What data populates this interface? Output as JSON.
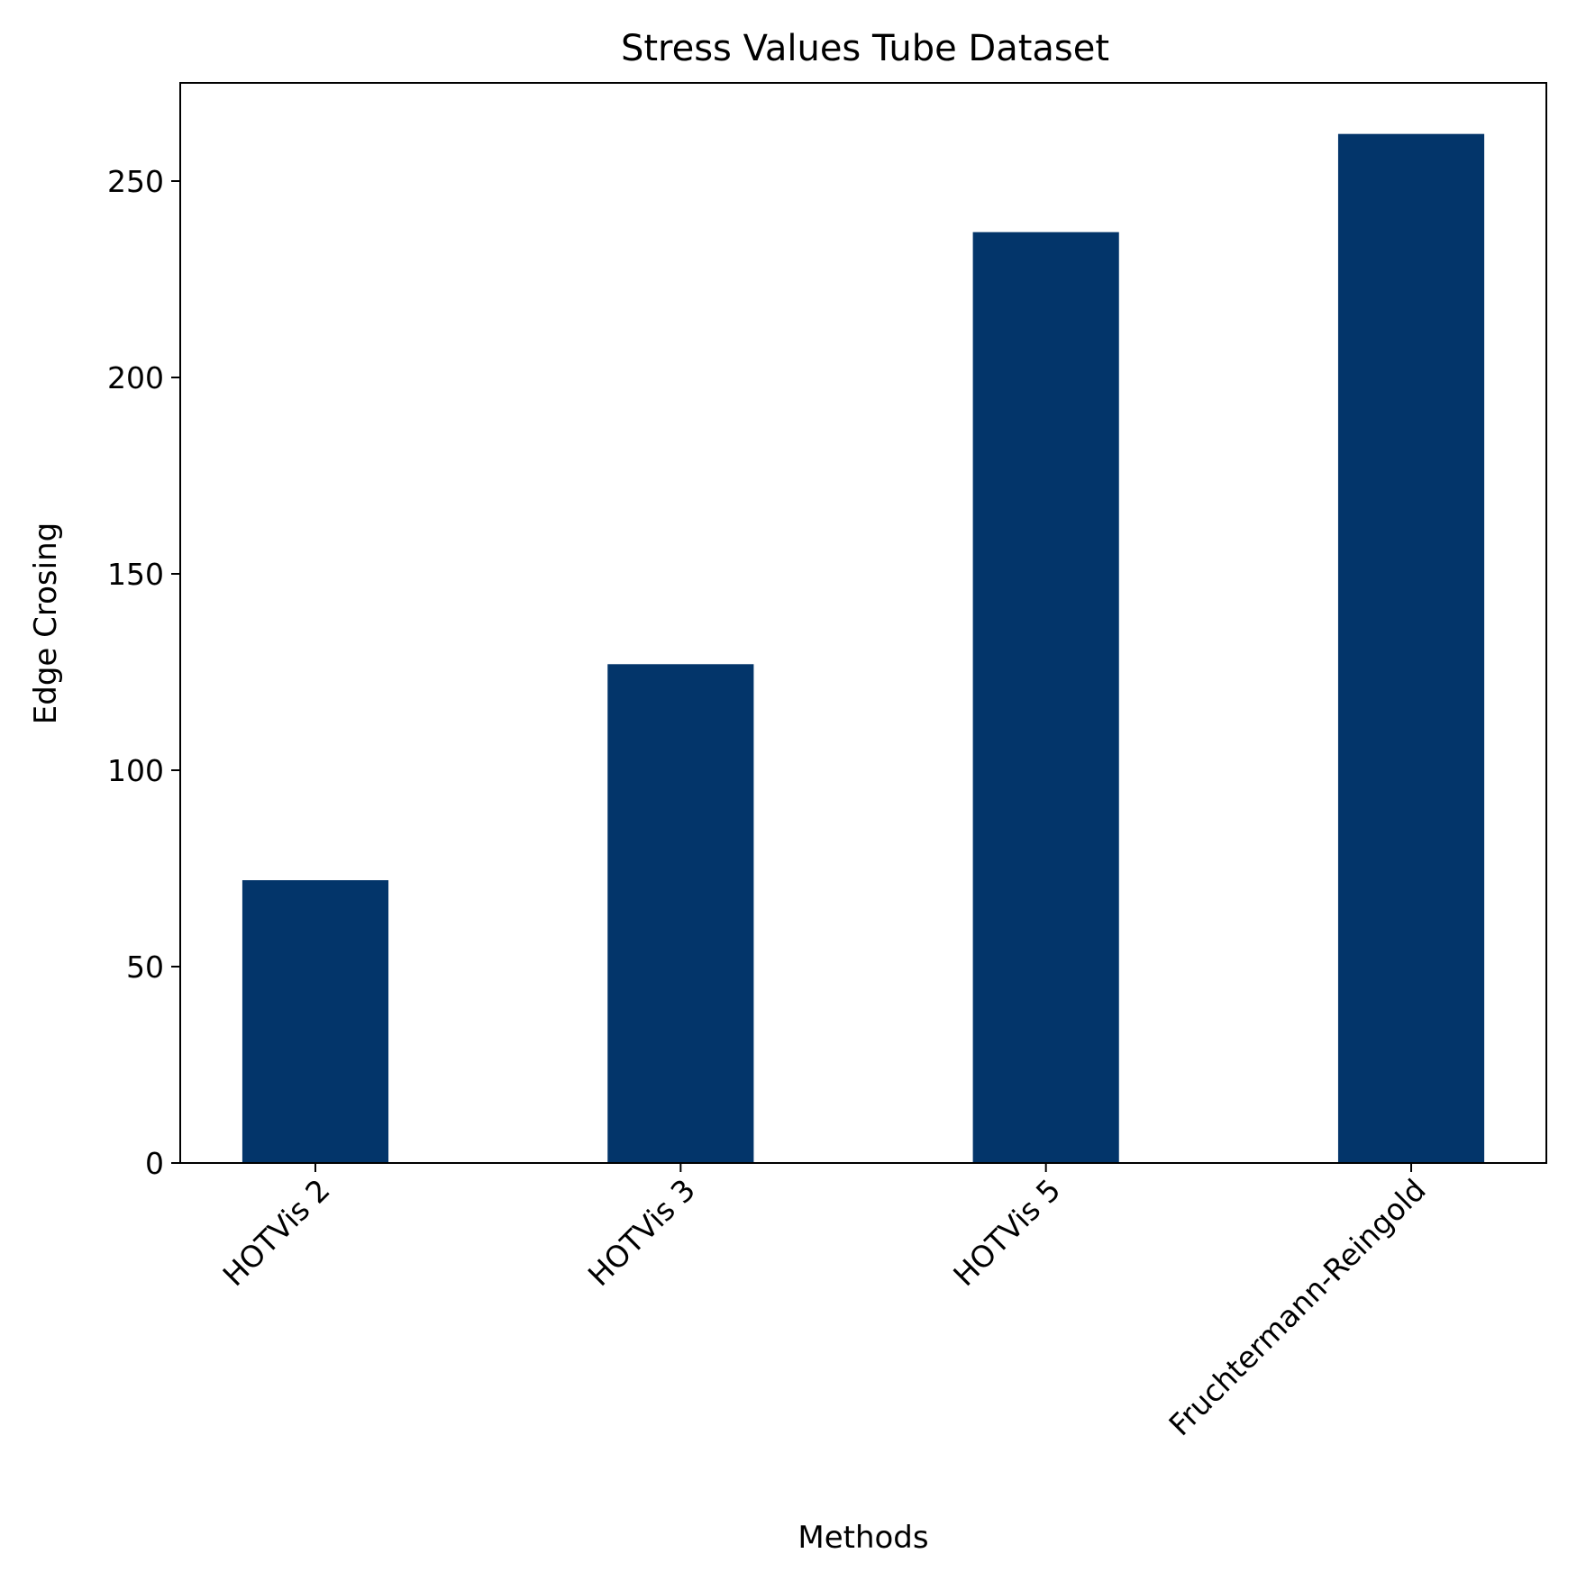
{
  "chart_data": {
    "type": "bar",
    "title": "Stress Values Tube Dataset",
    "xlabel": "Methods",
    "ylabel": "Edge Crosing",
    "categories": [
      "HOTVis 2",
      "HOTVis 3",
      "HOTVis 5",
      "Fruchtermann-Reingold"
    ],
    "values": [
      72,
      127,
      237,
      262
    ],
    "ylim": [
      0,
      275
    ],
    "yticks": [
      0,
      50,
      100,
      150,
      200,
      250
    ],
    "bar_color": "#03356a",
    "grid": false,
    "legend": "none"
  }
}
